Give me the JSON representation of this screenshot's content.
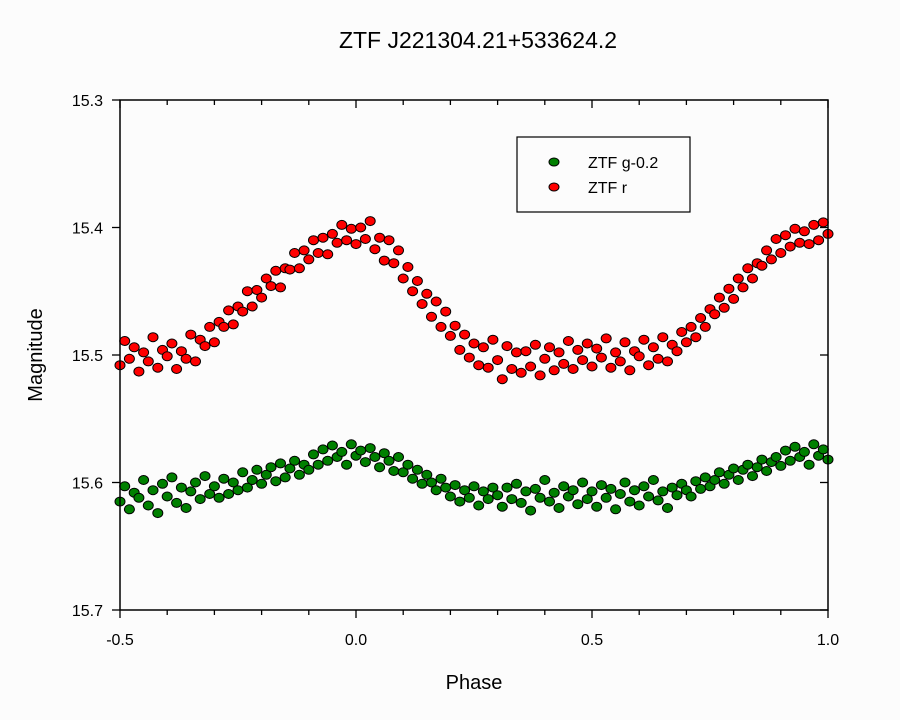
{
  "chart_data": {
    "type": "scatter",
    "title": "ZTF J221304.21+533624.2",
    "xlabel": "Phase",
    "ylabel": "Magnitude",
    "xlim": [
      -0.5,
      1.0
    ],
    "ylim": [
      15.3,
      15.7
    ],
    "y_inverted": true,
    "grid": false,
    "legend_position": "top-right",
    "x_ticks": [
      "-0.5",
      "0.0",
      "0.5",
      "1.0"
    ],
    "y_ticks": [
      "15.3",
      "15.4",
      "15.5",
      "15.6",
      "15.7"
    ],
    "x": [
      -0.5,
      -0.49,
      -0.48,
      -0.47,
      -0.46,
      -0.45,
      -0.44,
      -0.43,
      -0.42,
      -0.41,
      -0.4,
      -0.39,
      -0.38,
      -0.37,
      -0.36,
      -0.35,
      -0.34,
      -0.33,
      -0.32,
      -0.31,
      -0.3,
      -0.29,
      -0.28,
      -0.27,
      -0.26,
      -0.25,
      -0.24,
      -0.23,
      -0.22,
      -0.21,
      -0.2,
      -0.19,
      -0.18,
      -0.17,
      -0.16,
      -0.15,
      -0.14,
      -0.13,
      -0.12,
      -0.11,
      -0.1,
      -0.09,
      -0.08,
      -0.07,
      -0.06,
      -0.05,
      -0.04,
      -0.03,
      -0.02,
      -0.01,
      0.0,
      0.01,
      0.02,
      0.03,
      0.04,
      0.05,
      0.06,
      0.07,
      0.08,
      0.09,
      0.1,
      0.11,
      0.12,
      0.13,
      0.14,
      0.15,
      0.16,
      0.17,
      0.18,
      0.19,
      0.2,
      0.21,
      0.22,
      0.23,
      0.24,
      0.25,
      0.26,
      0.27,
      0.28,
      0.29,
      0.3,
      0.31,
      0.32,
      0.33,
      0.34,
      0.35,
      0.36,
      0.37,
      0.38,
      0.39,
      0.4,
      0.41,
      0.42,
      0.43,
      0.44,
      0.45,
      0.46,
      0.47,
      0.48,
      0.49,
      0.5,
      0.51,
      0.52,
      0.53,
      0.54,
      0.55,
      0.56,
      0.57,
      0.58,
      0.59,
      0.6,
      0.61,
      0.62,
      0.63,
      0.64,
      0.65,
      0.66,
      0.67,
      0.68,
      0.69,
      0.7,
      0.71,
      0.72,
      0.73,
      0.74,
      0.75,
      0.76,
      0.77,
      0.78,
      0.79,
      0.8,
      0.81,
      0.82,
      0.83,
      0.84,
      0.85,
      0.86,
      0.87,
      0.88,
      0.89,
      0.9,
      0.91,
      0.92,
      0.93,
      0.94,
      0.95,
      0.96,
      0.97,
      0.98,
      0.99,
      1.0
    ],
    "series": [
      {
        "name": "ZTF g-0.2",
        "color": "#008000",
        "values": [
          15.615,
          15.603,
          15.621,
          15.608,
          15.612,
          15.598,
          15.618,
          15.606,
          15.624,
          15.601,
          15.611,
          15.596,
          15.616,
          15.604,
          15.62,
          15.607,
          15.6,
          15.613,
          15.595,
          15.609,
          15.603,
          15.612,
          15.597,
          15.609,
          15.6,
          15.606,
          15.592,
          15.604,
          15.598,
          15.59,
          15.601,
          15.594,
          15.588,
          15.599,
          15.585,
          15.596,
          15.589,
          15.583,
          15.594,
          15.586,
          15.59,
          15.578,
          15.586,
          15.574,
          15.583,
          15.571,
          15.58,
          15.576,
          15.586,
          15.57,
          15.579,
          15.575,
          15.584,
          15.573,
          15.58,
          15.588,
          15.577,
          15.583,
          15.591,
          15.58,
          15.592,
          15.586,
          15.597,
          15.59,
          15.601,
          15.594,
          15.6,
          15.606,
          15.597,
          15.604,
          15.611,
          15.602,
          15.615,
          15.606,
          15.612,
          15.603,
          15.618,
          15.607,
          15.613,
          15.604,
          15.61,
          15.619,
          15.604,
          15.613,
          15.601,
          15.616,
          15.607,
          15.622,
          15.605,
          15.612,
          15.598,
          15.615,
          15.608,
          15.62,
          15.603,
          15.611,
          15.606,
          15.617,
          15.6,
          15.613,
          15.607,
          15.619,
          15.602,
          15.612,
          15.605,
          15.621,
          15.609,
          15.6,
          15.615,
          15.606,
          15.618,
          15.603,
          15.611,
          15.598,
          15.614,
          15.607,
          15.62,
          15.604,
          15.61,
          15.601,
          15.606,
          15.611,
          15.599,
          15.605,
          15.596,
          15.603,
          15.598,
          15.592,
          15.601,
          15.594,
          15.589,
          15.598,
          15.59,
          15.586,
          15.595,
          15.588,
          15.582,
          15.591,
          15.584,
          15.58,
          15.587,
          15.575,
          15.583,
          15.572,
          15.58,
          15.576,
          15.586,
          15.57,
          15.579,
          15.574,
          15.582
        ]
      },
      {
        "name": "ZTF r",
        "color": "#ff0000",
        "values": [
          15.508,
          15.489,
          15.503,
          15.494,
          15.513,
          15.498,
          15.505,
          15.486,
          15.51,
          15.496,
          15.501,
          15.491,
          15.511,
          15.497,
          15.503,
          15.484,
          15.505,
          15.488,
          15.493,
          15.478,
          15.49,
          15.474,
          15.478,
          15.465,
          15.476,
          15.462,
          15.466,
          15.45,
          15.462,
          15.449,
          15.455,
          15.44,
          15.446,
          15.434,
          15.447,
          15.432,
          15.433,
          15.42,
          15.432,
          15.418,
          15.425,
          15.41,
          15.42,
          15.408,
          15.421,
          15.405,
          15.412,
          15.398,
          15.41,
          15.401,
          15.413,
          15.4,
          15.409,
          15.395,
          15.417,
          15.408,
          15.426,
          15.41,
          15.428,
          15.418,
          15.44,
          15.431,
          15.45,
          15.442,
          15.46,
          15.452,
          15.47,
          15.458,
          15.478,
          15.466,
          15.485,
          15.477,
          15.496,
          15.484,
          15.502,
          15.491,
          15.508,
          15.494,
          15.51,
          15.488,
          15.504,
          15.519,
          15.493,
          15.511,
          15.498,
          15.514,
          15.497,
          15.509,
          15.492,
          15.516,
          15.503,
          15.494,
          15.512,
          15.498,
          15.507,
          15.489,
          15.511,
          15.496,
          15.504,
          15.491,
          15.509,
          15.495,
          15.502,
          15.487,
          15.51,
          15.498,
          15.505,
          15.49,
          15.512,
          15.497,
          15.501,
          15.488,
          15.508,
          15.494,
          15.503,
          15.486,
          15.505,
          15.492,
          15.497,
          15.482,
          15.49,
          15.478,
          15.486,
          15.471,
          15.478,
          15.464,
          15.468,
          15.455,
          15.463,
          15.448,
          15.456,
          15.44,
          15.447,
          15.432,
          15.44,
          15.428,
          15.43,
          15.418,
          15.425,
          15.409,
          15.42,
          15.406,
          15.415,
          15.401,
          15.412,
          15.403,
          15.413,
          15.398,
          15.41,
          15.396,
          15.405
        ]
      }
    ]
  }
}
